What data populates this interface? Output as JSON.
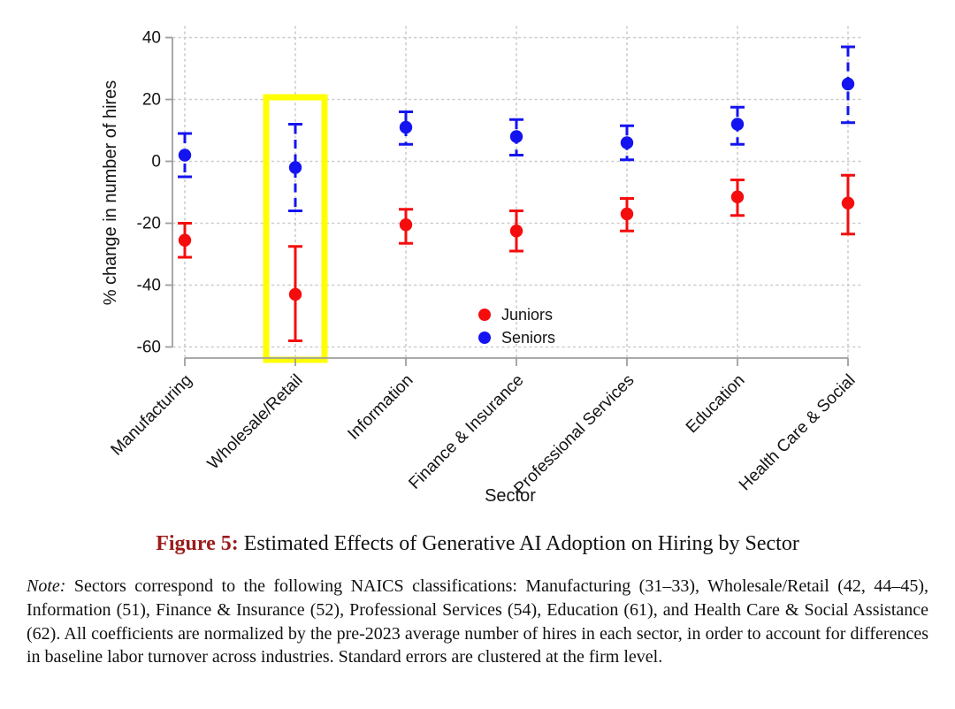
{
  "figure": {
    "caption_label": "Figure 5:",
    "caption_text": "Estimated Effects of Generative AI Adoption on Hiring by Sector",
    "caption_label_color": "#9B1B1B",
    "note_label": "Note:",
    "note_body": "Sectors correspond to the following NAICS classifications: Manufacturing (31–33), Wholesale/Retail (42, 44–45), Information (51), Finance & Insurance (52), Professional Services (54), Education (61), and Health Care & Social Assistance (62). All coefficients are normalized by the pre-2023 average number of hires in each sector, in order to account for differences in baseline labor turnover across industries. Standard errors are clustered at the firm level."
  },
  "chart_data": {
    "type": "scatter",
    "title": "",
    "xlabel": "Sector",
    "ylabel": "% change in number of hires",
    "ylim": [
      -60,
      40
    ],
    "yticks": [
      40,
      20,
      0,
      -20,
      -40,
      -60
    ],
    "grid": "dotted",
    "categories": [
      "Manufacturing",
      "Wholesale/Retail",
      "Information",
      "Finance & Insurance",
      "Professional Services",
      "Education",
      "Health Care & Social"
    ],
    "series": [
      {
        "name": "Juniors",
        "color": "#F50D0D",
        "ci_style": "solid",
        "values": [
          -25.5,
          -43,
          -20.5,
          -22.5,
          -17,
          -11.5,
          -13.5
        ],
        "ci_low": [
          -31,
          -58,
          -26.5,
          -29,
          -22.5,
          -17.5,
          -23.5
        ],
        "ci_high": [
          -20,
          -27.5,
          -15.5,
          -16,
          -12,
          -6,
          -4.5
        ]
      },
      {
        "name": "Seniors",
        "color": "#1414F0",
        "ci_style": "dashed",
        "values": [
          2,
          -2,
          11,
          8,
          6,
          12,
          25
        ],
        "ci_low": [
          -5,
          -16,
          5.5,
          2,
          0.5,
          5.5,
          12.5
        ],
        "ci_high": [
          9,
          12,
          16,
          13.5,
          11.5,
          17.5,
          37
        ]
      }
    ],
    "legend": {
      "position": "inside-bottom-center",
      "entries": [
        {
          "label": "Juniors",
          "color": "#F50D0D"
        },
        {
          "label": "Seniors",
          "color": "#1414F0"
        }
      ]
    },
    "highlight": {
      "category": "Wholesale/Retail",
      "color": "#FFFF00"
    }
  }
}
